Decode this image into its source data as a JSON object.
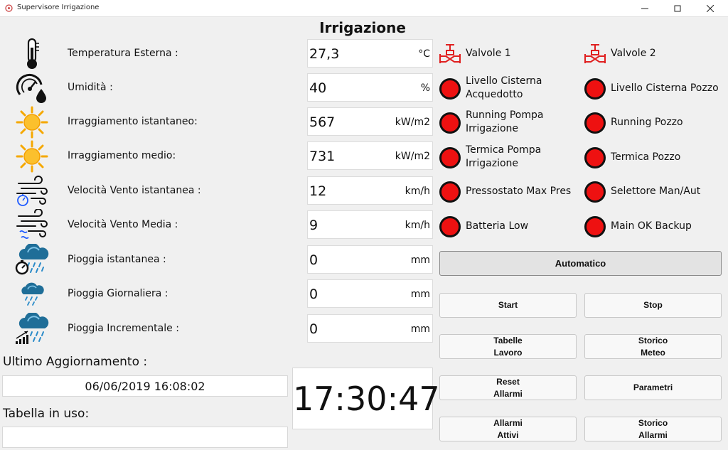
{
  "window": {
    "title": "Supervisore Irrigazione",
    "icons": {
      "app": "app-icon",
      "minimize": "minimize-icon",
      "maximize": "maximize-icon",
      "close": "close-icon"
    }
  },
  "header": {
    "title": "Irrigazione"
  },
  "sensors": [
    {
      "icon": "thermometer-icon",
      "label": "Temperatura Esterna :",
      "value": "27,3",
      "unit": "°C"
    },
    {
      "icon": "humidity-gauge-icon",
      "label": "Umidità :",
      "value": "40",
      "unit": "%"
    },
    {
      "icon": "sun-icon",
      "label": "Irraggiamento  istantaneo:",
      "value": "567",
      "unit": "kW/m2"
    },
    {
      "icon": "sun-icon",
      "label": "Irraggiamento medio:",
      "value": "731",
      "unit": "kW/m2"
    },
    {
      "icon": "wind-timer-icon",
      "label": "Velocità Vento istantanea :",
      "value": "12",
      "unit": "km/h"
    },
    {
      "icon": "wind-avg-icon",
      "label": "Velocità Vento Media :",
      "value": "9",
      "unit": "km/h"
    },
    {
      "icon": "rain-timer-icon",
      "label": "Pioggia istantanea :",
      "value": "0",
      "unit": "mm"
    },
    {
      "icon": "rain-cloud-icon",
      "label": "Pioggia Giornaliera :",
      "value": "0",
      "unit": "mm"
    },
    {
      "icon": "rain-chart-icon",
      "label": "Pioggia Incrementale :",
      "value": "0",
      "unit": "mm"
    }
  ],
  "update": {
    "label": "Ultimo Aggiornamento :",
    "value": "06/06/2019 16:08:02"
  },
  "table": {
    "label": "Tabella in uso:",
    "value": ""
  },
  "clock": {
    "time": "17:30:47"
  },
  "valves": [
    {
      "icon": "valve-icon",
      "label": "Valvole 1"
    },
    {
      "icon": "valve-icon",
      "label": "Valvole 2"
    }
  ],
  "statuses": [
    {
      "label": "Livello Cisterna Acquedotto",
      "color": "#ee1111"
    },
    {
      "label": "Livello Cisterna Pozzo",
      "color": "#ee1111"
    },
    {
      "label": "Running Pompa Irrigazione",
      "color": "#ee1111"
    },
    {
      "label": "Running Pozzo",
      "color": "#ee1111"
    },
    {
      "label": "Termica Pompa Irrigazione",
      "color": "#ee1111"
    },
    {
      "label": "Termica Pozzo",
      "color": "#ee1111"
    },
    {
      "label": "Pressostato Max Pres",
      "color": "#ee1111"
    },
    {
      "label": "Selettore Man/Aut",
      "color": "#ee1111"
    },
    {
      "label": "Batteria Low",
      "color": "#ee1111"
    },
    {
      "label": "Main OK Backup",
      "color": "#ee1111"
    }
  ],
  "controls": {
    "mode": "Automatico",
    "start": "Start",
    "stop": "Stop",
    "tabelle_lavoro": "Tabelle\nLavoro",
    "storico_meteo": "Storico\nMeteo",
    "reset_allarmi": "Reset\nAllarmi",
    "parametri": "Parametri",
    "allarmi_attivi": "Allarmi\nAttivi",
    "storico_allarmi": "Storico\nAllarmi"
  }
}
